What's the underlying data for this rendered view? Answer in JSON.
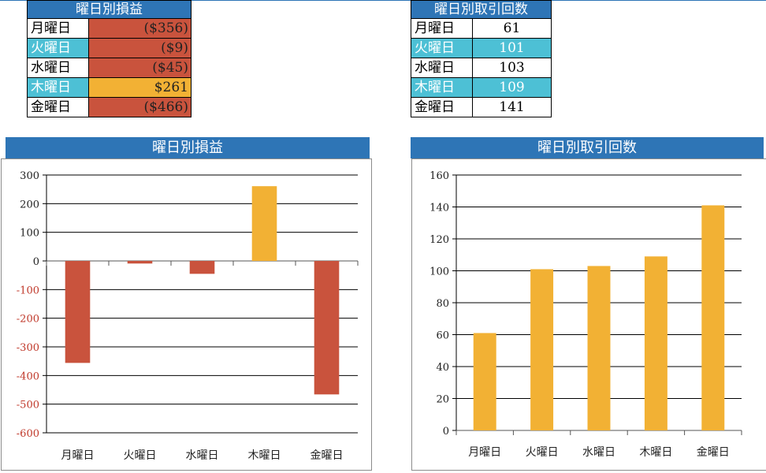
{
  "pl_table": {
    "header": "曜日別損益",
    "rows": [
      {
        "day": "月曜日",
        "value": "($356)",
        "kind": "neg",
        "cyan": false
      },
      {
        "day": "火曜日",
        "value": "($9)",
        "kind": "neg",
        "cyan": true
      },
      {
        "day": "水曜日",
        "value": "($45)",
        "kind": "neg",
        "cyan": false
      },
      {
        "day": "木曜日",
        "value": "$261",
        "kind": "pos",
        "cyan": true
      },
      {
        "day": "金曜日",
        "value": "($466)",
        "kind": "neg",
        "cyan": false
      }
    ]
  },
  "count_table": {
    "header": "曜日別取引回数",
    "rows": [
      {
        "day": "月曜日",
        "value": "61",
        "cyan": false
      },
      {
        "day": "火曜日",
        "value": "101",
        "cyan": true
      },
      {
        "day": "水曜日",
        "value": "103",
        "cyan": false
      },
      {
        "day": "木曜日",
        "value": "109",
        "cyan": true
      },
      {
        "day": "金曜日",
        "value": "141",
        "cyan": false
      }
    ]
  },
  "colors": {
    "negative": "#c9533d",
    "positive": "#f2b134",
    "header": "#2e75b6",
    "cyan": "#4dc0d5",
    "negative_tick": "#c0392b"
  },
  "chart_data": [
    {
      "type": "bar",
      "title": "曜日別損益",
      "categories": [
        "月曜日",
        "火曜日",
        "水曜日",
        "木曜日",
        "金曜日"
      ],
      "values": [
        -356,
        -9,
        -45,
        261,
        -466
      ],
      "ylim": [
        -600,
        300
      ],
      "yticks": [
        300,
        200,
        100,
        0,
        -100,
        -200,
        -300,
        -400,
        -500,
        -600
      ],
      "xlabel": "",
      "ylabel": "",
      "grid": true
    },
    {
      "type": "bar",
      "title": "曜日別取引回数",
      "categories": [
        "月曜日",
        "火曜日",
        "水曜日",
        "木曜日",
        "金曜日"
      ],
      "values": [
        61,
        101,
        103,
        109,
        141
      ],
      "ylim": [
        0,
        160
      ],
      "yticks": [
        160,
        140,
        120,
        100,
        80,
        60,
        40,
        20,
        0
      ],
      "xlabel": "",
      "ylabel": "",
      "grid": true
    }
  ]
}
